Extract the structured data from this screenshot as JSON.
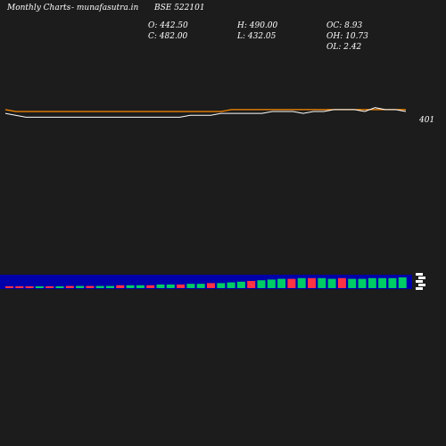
{
  "header": {
    "left_title": "Monthly Charts",
    "site": "- munafasutra.in",
    "symbol": "BSE 522101",
    "ohlc": {
      "open": "O: 442.50",
      "close": "C: 482.00",
      "high": "H: 490.00",
      "low": "L: 432.05",
      "oc": "OC: 8.93",
      "oh": "OH: 10.73",
      "ol": "OL: 2.42"
    }
  },
  "chart_data": {
    "type": "line",
    "price_label": "401",
    "colors": {
      "background": "#1c1c1c",
      "price_line": "#ffffff",
      "moving_average": "#ff8c00",
      "volume_band": "#0000aa",
      "volume_up": "#00cc66",
      "volume_down": "#ff3344"
    },
    "price_series": [
      382,
      381,
      380,
      380,
      380,
      380,
      380,
      380,
      380,
      380,
      380,
      380,
      380,
      380,
      380,
      380,
      380,
      380,
      381,
      381,
      381,
      382,
      382,
      382,
      382,
      382,
      383,
      383,
      383,
      382,
      383,
      383,
      384,
      384,
      384,
      383,
      385,
      384,
      384,
      383
    ],
    "ma_series": [
      384,
      383,
      383,
      383,
      383,
      383,
      383,
      383,
      383,
      383,
      383,
      383,
      383,
      383,
      383,
      383,
      383,
      383,
      383,
      383,
      383,
      383,
      384,
      384,
      384,
      384,
      384,
      384,
      384,
      384,
      384,
      384,
      384,
      384,
      384,
      384,
      384,
      384,
      384,
      384
    ],
    "volume_levels": [
      2,
      2,
      2,
      2,
      2,
      2,
      3,
      3,
      3,
      3,
      3,
      4,
      4,
      4,
      4,
      5,
      5,
      5,
      6,
      6,
      7,
      7,
      8,
      9,
      10,
      11,
      12,
      13,
      13,
      14,
      14,
      14,
      13,
      14,
      13,
      13,
      14,
      14,
      14,
      15
    ],
    "volume_direction": [
      "down",
      "down",
      "down",
      "up",
      "down",
      "up",
      "down",
      "up",
      "down",
      "up",
      "up",
      "down",
      "up",
      "up",
      "down",
      "up",
      "up",
      "down",
      "up",
      "up",
      "down",
      "up",
      "up",
      "up",
      "down",
      "up",
      "up",
      "up",
      "down",
      "up",
      "down",
      "up",
      "up",
      "down",
      "up",
      "up",
      "up",
      "up",
      "up",
      "up"
    ]
  }
}
